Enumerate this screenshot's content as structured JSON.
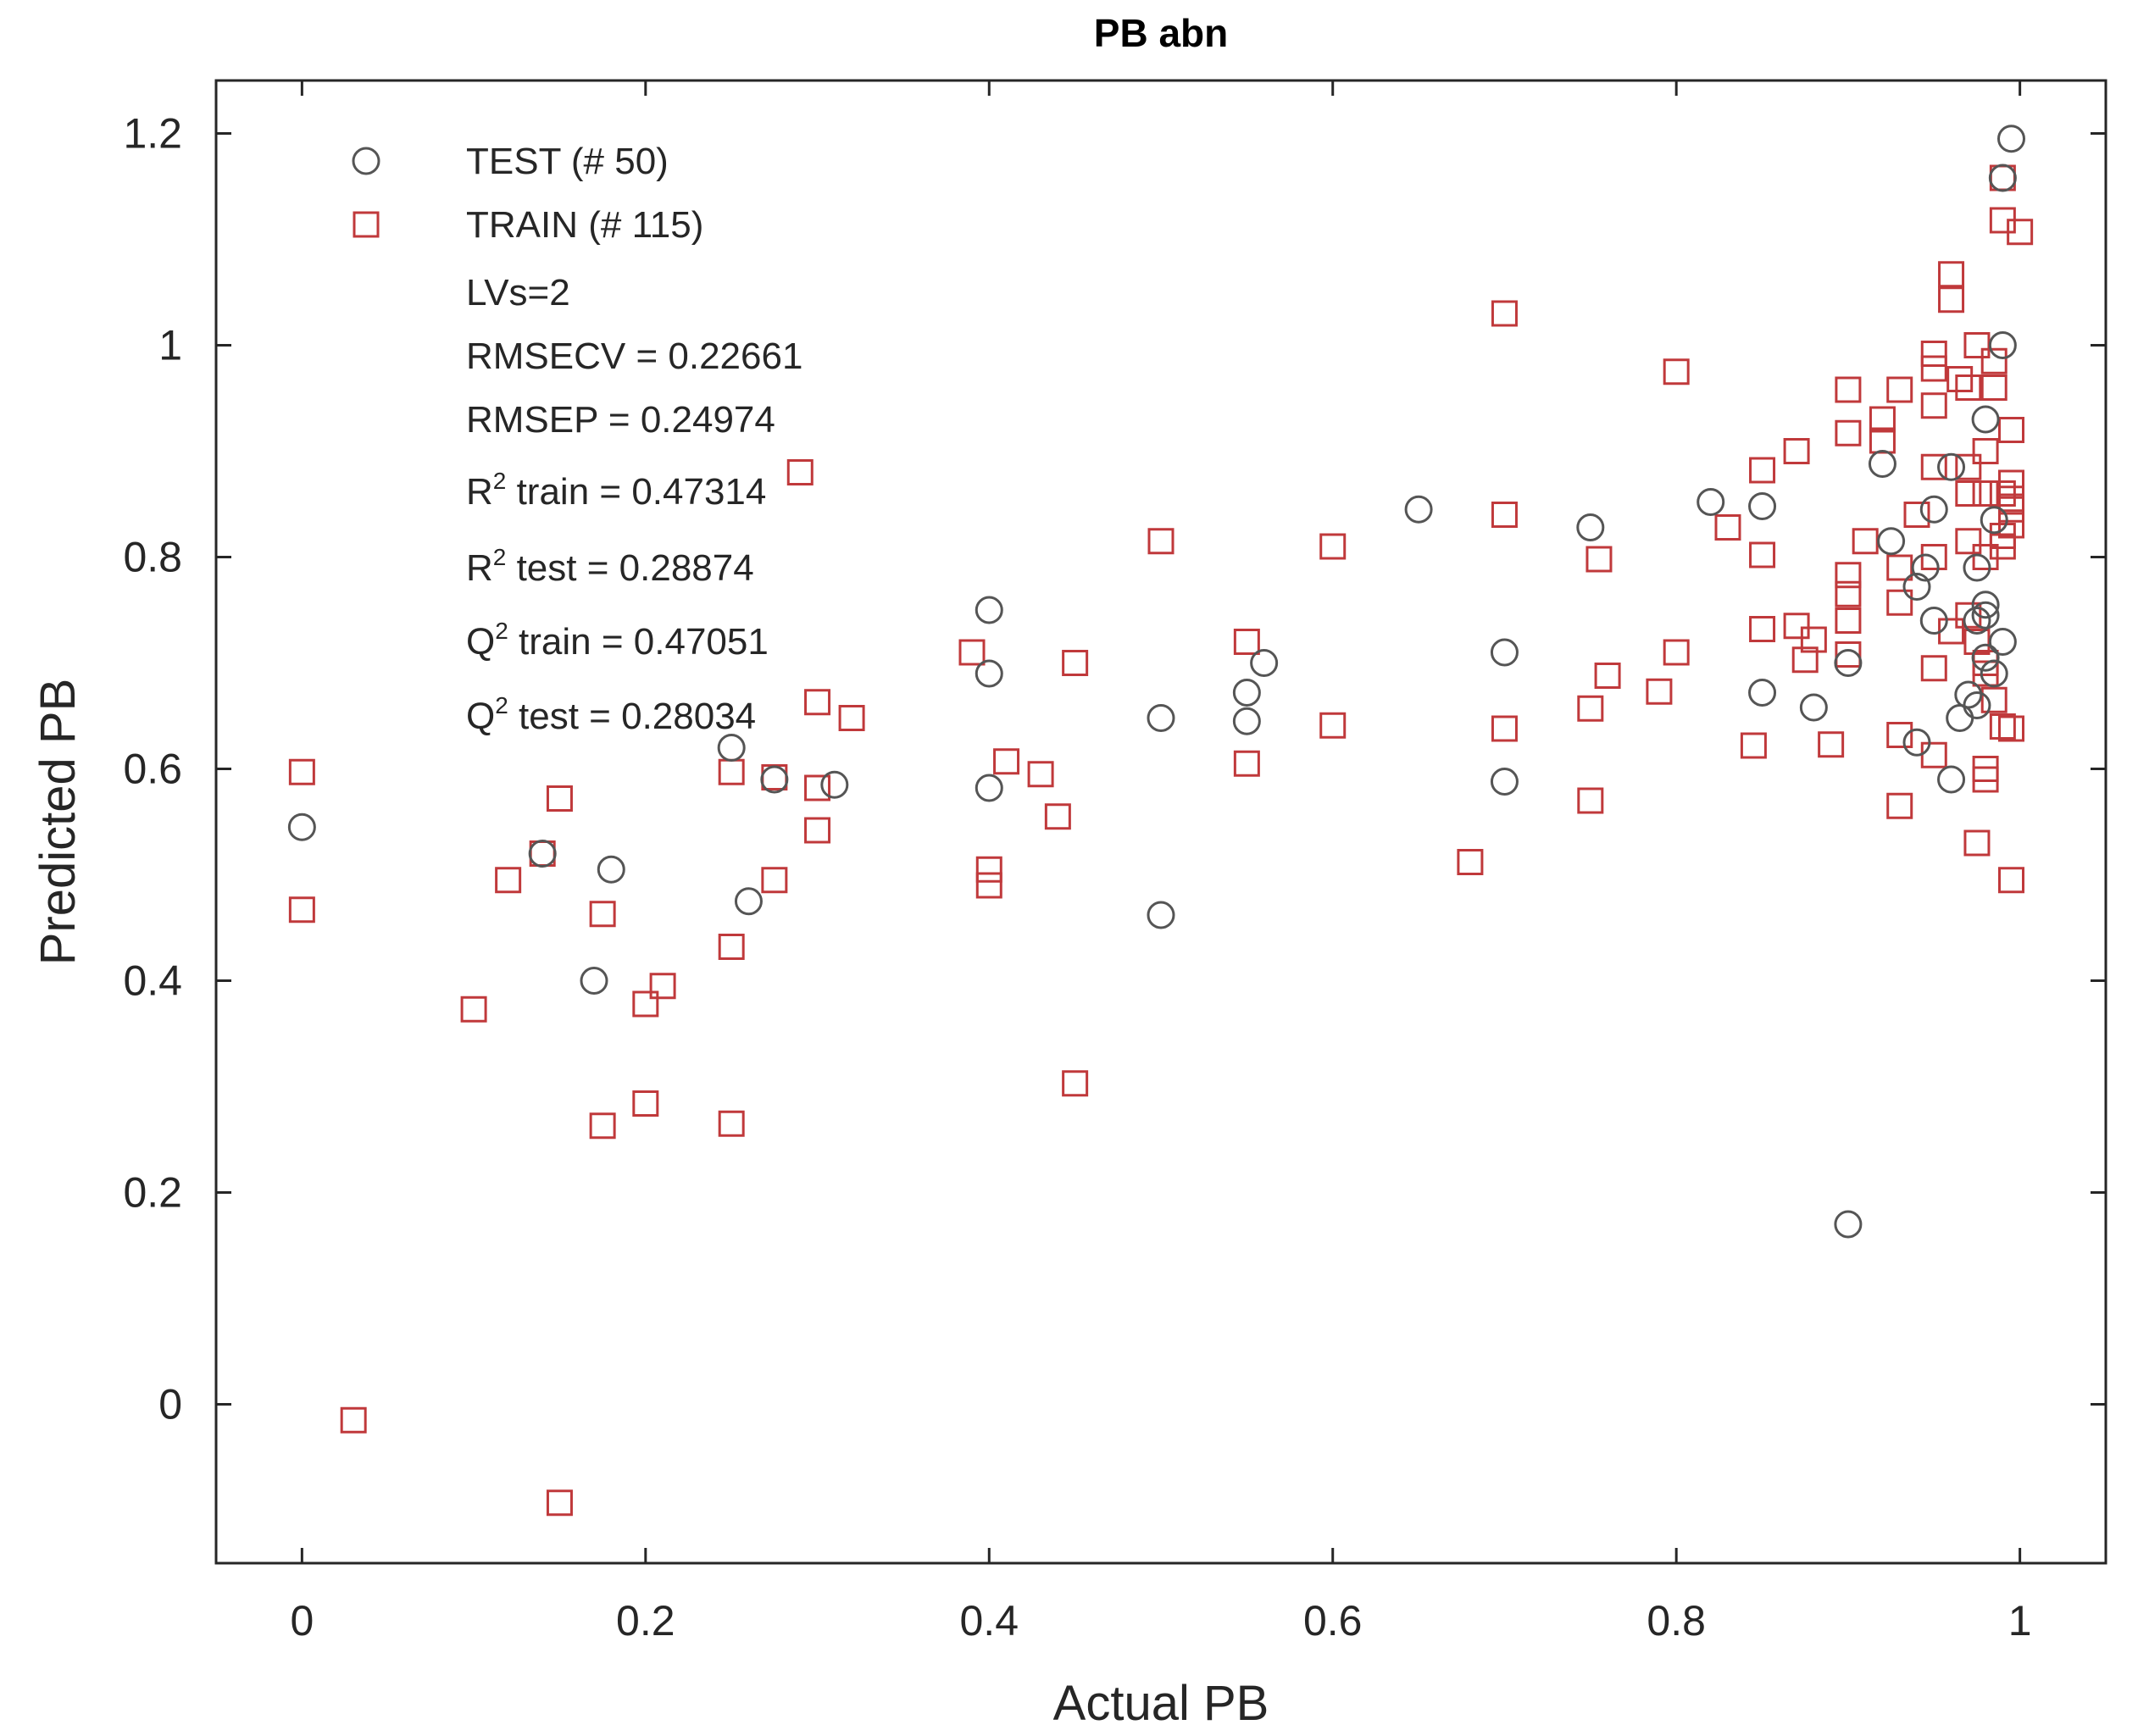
{
  "chart_data": {
    "type": "scatter",
    "title": "PB abn",
    "xlabel": "Actual PB",
    "ylabel": "Predicted PB",
    "xlim": [
      -0.05,
      1.05
    ],
    "ylim": [
      -0.15,
      1.25
    ],
    "xticks": [
      0,
      0.2,
      0.4,
      0.6,
      0.8,
      1
    ],
    "xtick_labels": [
      "0",
      "0.2",
      "0.4",
      "0.6",
      "0.8",
      "1"
    ],
    "yticks": [
      0,
      0.2,
      0.4,
      0.6,
      0.8,
      1,
      1.2
    ],
    "ytick_labels": [
      "0",
      "0.2",
      "0.4",
      "0.6",
      "0.8",
      "1",
      "1.2"
    ],
    "legend_position": "top-left",
    "series": [
      {
        "name": "TEST (# 50)",
        "marker": "circle",
        "color": "#555555",
        "points": [
          [
            0,
            0.545
          ],
          [
            0.14,
            0.52
          ],
          [
            0.17,
            0.4
          ],
          [
            0.18,
            0.505
          ],
          [
            0.25,
            0.62
          ],
          [
            0.26,
            0.475
          ],
          [
            0.275,
            0.59
          ],
          [
            0.31,
            0.585
          ],
          [
            0.4,
            0.75
          ],
          [
            0.4,
            0.69
          ],
          [
            0.4,
            0.582
          ],
          [
            0.5,
            0.648
          ],
          [
            0.5,
            0.462
          ],
          [
            0.55,
            0.645
          ],
          [
            0.55,
            0.672
          ],
          [
            0.56,
            0.7
          ],
          [
            0.65,
            0.845
          ],
          [
            0.7,
            0.71
          ],
          [
            0.7,
            0.588
          ],
          [
            0.75,
            0.828
          ],
          [
            0.82,
            0.852
          ],
          [
            0.85,
            0.848
          ],
          [
            0.85,
            0.672
          ],
          [
            0.88,
            0.658
          ],
          [
            0.9,
            0.7
          ],
          [
            0.9,
            0.17
          ],
          [
            0.92,
            0.888
          ],
          [
            0.925,
            0.815
          ],
          [
            0.94,
            0.625
          ],
          [
            0.94,
            0.772
          ],
          [
            0.945,
            0.79
          ],
          [
            0.95,
            0.845
          ],
          [
            0.95,
            0.74
          ],
          [
            0.96,
            0.885
          ],
          [
            0.96,
            0.59
          ],
          [
            0.965,
            0.648
          ],
          [
            0.97,
            0.67
          ],
          [
            0.975,
            0.79
          ],
          [
            0.975,
            0.66
          ],
          [
            0.98,
            0.93
          ],
          [
            0.98,
            0.755
          ],
          [
            0.98,
            0.745
          ],
          [
            0.98,
            0.705
          ],
          [
            0.985,
            0.835
          ],
          [
            0.985,
            0.69
          ],
          [
            0.99,
            1.158
          ],
          [
            0.99,
            0.72
          ],
          [
            0.99,
            1.0
          ],
          [
            0.995,
            1.195
          ],
          [
            0.975,
            0.74
          ]
        ]
      },
      {
        "name": "TRAIN (# 115)",
        "marker": "square",
        "color": "#c0393b",
        "points": [
          [
            0,
            0.597
          ],
          [
            0,
            0.467
          ],
          [
            0.03,
            -0.015
          ],
          [
            0.1,
            0.373
          ],
          [
            0.12,
            0.495
          ],
          [
            0.14,
            0.52
          ],
          [
            0.15,
            0.572
          ],
          [
            0.15,
            -0.093
          ],
          [
            0.175,
            0.463
          ],
          [
            0.175,
            0.263
          ],
          [
            0.2,
            0.378
          ],
          [
            0.2,
            0.284
          ],
          [
            0.21,
            0.395
          ],
          [
            0.25,
            0.597
          ],
          [
            0.25,
            0.432
          ],
          [
            0.25,
            0.265
          ],
          [
            0.275,
            0.592
          ],
          [
            0.275,
            0.495
          ],
          [
            0.29,
            0.88
          ],
          [
            0.3,
            0.663
          ],
          [
            0.3,
            0.582
          ],
          [
            0.3,
            0.542
          ],
          [
            0.32,
            0.648
          ],
          [
            0.39,
            0.71
          ],
          [
            0.4,
            0.505
          ],
          [
            0.4,
            0.49
          ],
          [
            0.41,
            0.607
          ],
          [
            0.43,
            0.595
          ],
          [
            0.44,
            0.555
          ],
          [
            0.45,
            0.7
          ],
          [
            0.45,
            0.303
          ],
          [
            0.5,
            0.815
          ],
          [
            0.55,
            0.72
          ],
          [
            0.55,
            0.605
          ],
          [
            0.6,
            0.81
          ],
          [
            0.6,
            0.641
          ],
          [
            0.68,
            0.512
          ],
          [
            0.7,
            1.03
          ],
          [
            0.7,
            0.84
          ],
          [
            0.7,
            0.638
          ],
          [
            0.75,
            0.657
          ],
          [
            0.75,
            0.57
          ],
          [
            0.755,
            0.798
          ],
          [
            0.76,
            0.688
          ],
          [
            0.79,
            0.673
          ],
          [
            0.8,
            0.975
          ],
          [
            0.8,
            0.71
          ],
          [
            0.83,
            0.828
          ],
          [
            0.845,
            0.622
          ],
          [
            0.85,
            0.882
          ],
          [
            0.85,
            0.802
          ],
          [
            0.85,
            0.732
          ],
          [
            0.87,
            0.9
          ],
          [
            0.87,
            0.735
          ],
          [
            0.875,
            0.703
          ],
          [
            0.88,
            0.722
          ],
          [
            0.89,
            0.623
          ],
          [
            0.9,
            0.958
          ],
          [
            0.9,
            0.917
          ],
          [
            0.9,
            0.783
          ],
          [
            0.9,
            0.765
          ],
          [
            0.9,
            0.74
          ],
          [
            0.9,
            0.708
          ],
          [
            0.91,
            0.815
          ],
          [
            0.92,
            0.93
          ],
          [
            0.92,
            0.91
          ],
          [
            0.93,
            0.958
          ],
          [
            0.93,
            0.79
          ],
          [
            0.93,
            0.757
          ],
          [
            0.93,
            0.632
          ],
          [
            0.93,
            0.565
          ],
          [
            0.94,
            0.84
          ],
          [
            0.95,
            0.992
          ],
          [
            0.95,
            0.978
          ],
          [
            0.95,
            0.943
          ],
          [
            0.95,
            0.885
          ],
          [
            0.95,
            0.8
          ],
          [
            0.95,
            0.695
          ],
          [
            0.95,
            0.613
          ],
          [
            0.96,
            1.067
          ],
          [
            0.96,
            1.043
          ],
          [
            0.965,
            0.968
          ],
          [
            0.97,
            0.96
          ],
          [
            0.97,
            0.885
          ],
          [
            0.97,
            0.86
          ],
          [
            0.97,
            0.815
          ],
          [
            0.97,
            0.745
          ],
          [
            0.975,
            1.0
          ],
          [
            0.975,
            0.53
          ],
          [
            0.98,
            0.9
          ],
          [
            0.98,
            0.86
          ],
          [
            0.98,
            0.8
          ],
          [
            0.98,
            0.7
          ],
          [
            0.98,
            0.69
          ],
          [
            0.98,
            0.6
          ],
          [
            0.98,
            0.59
          ],
          [
            0.985,
            0.985
          ],
          [
            0.985,
            0.96
          ],
          [
            0.99,
            1.158
          ],
          [
            0.99,
            1.118
          ],
          [
            0.99,
            0.86
          ],
          [
            0.99,
            0.82
          ],
          [
            0.99,
            0.81
          ],
          [
            0.99,
            0.64
          ],
          [
            0.995,
            0.92
          ],
          [
            0.995,
            0.87
          ],
          [
            0.995,
            0.855
          ],
          [
            0.995,
            0.845
          ],
          [
            0.995,
            0.83
          ],
          [
            0.995,
            0.495
          ],
          [
            1.0,
            1.107
          ],
          [
            0.995,
            0.638
          ],
          [
            0.985,
            0.665
          ],
          [
            0.975,
            0.72
          ],
          [
            0.96,
            0.73
          ]
        ]
      }
    ],
    "annotations": {
      "lvs": "LVs=2",
      "rmsecv": "RMSECV = 0.22661",
      "rmsep": "RMSEP = 0.24974",
      "r2_train_prefix": "R",
      "r2_train_sup": "2",
      "r2_train_rest": " train = 0.47314",
      "r2_test_prefix": "R",
      "r2_test_sup": "2",
      "r2_test_rest": " test = 0.28874",
      "q2_train_prefix": "Q",
      "q2_train_sup": "2",
      "q2_train_rest": " train = 0.47051",
      "q2_test_prefix": "Q",
      "q2_test_sup": "2",
      "q2_test_rest": " test = 0.28034"
    }
  }
}
